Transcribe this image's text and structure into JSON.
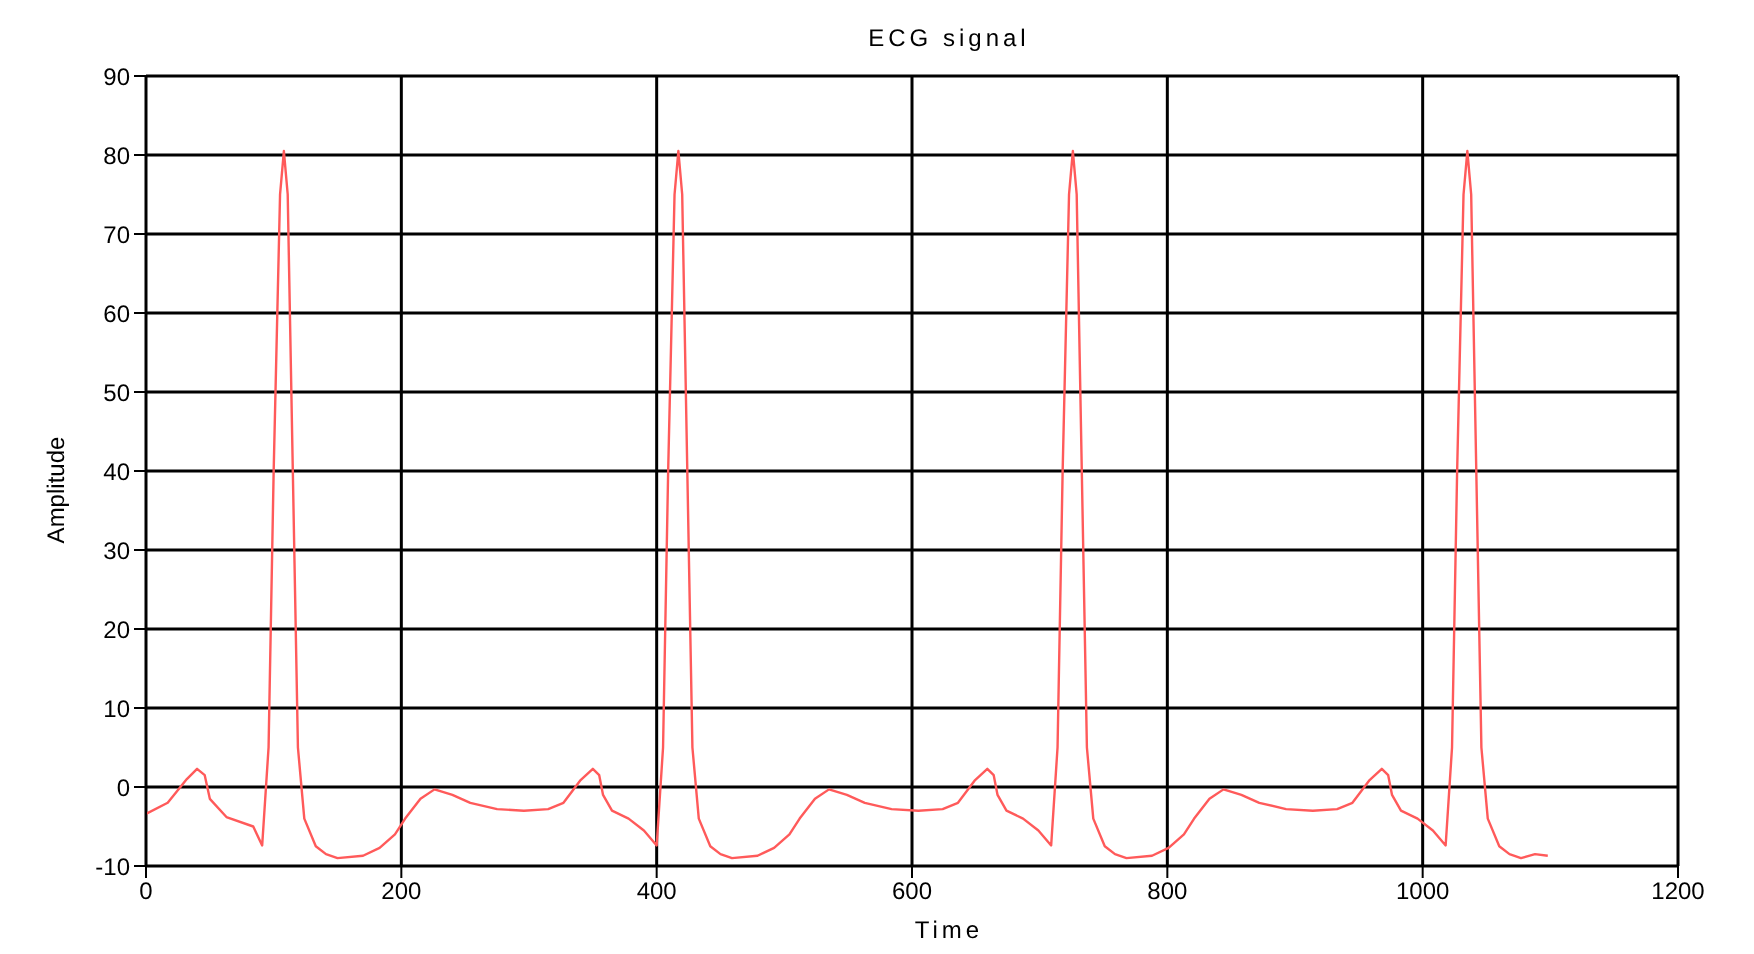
{
  "chart_data": {
    "type": "line",
    "title": "ECG signal",
    "xlabel": "Time",
    "ylabel": "Amplitude",
    "x": [
      0,
      17,
      32,
      40,
      46,
      50,
      63,
      84,
      91,
      96,
      100,
      105,
      108,
      111,
      115,
      119,
      124,
      133,
      141,
      150,
      170,
      183,
      195,
      203,
      215,
      226,
      240,
      254,
      275,
      296,
      315,
      327,
      340,
      350,
      355,
      358,
      365,
      378,
      390,
      400,
      405,
      409,
      414,
      417,
      420,
      424,
      428,
      433,
      442,
      450,
      459,
      479,
      492,
      504,
      512,
      524,
      535,
      549,
      563,
      584,
      605,
      624,
      636,
      649,
      659,
      664,
      667,
      674,
      687,
      699,
      709,
      714,
      718,
      723,
      726,
      729,
      733,
      737,
      742,
      751,
      759,
      768,
      788,
      801,
      813,
      821,
      833,
      844,
      858,
      872,
      893,
      914,
      933,
      945,
      958,
      968,
      973,
      976,
      983,
      996,
      1008,
      1018,
      1023,
      1027,
      1032,
      1035,
      1038,
      1042,
      1046,
      1051,
      1060,
      1068,
      1077,
      1088,
      1098
    ],
    "series": [
      {
        "color": "#ff5a5a",
        "values": [
          -3.4,
          -2,
          1,
          2.3,
          1.5,
          -1.5,
          -3.8,
          -5,
          -7.4,
          5,
          40,
          75,
          80.5,
          75,
          40,
          5,
          -4,
          -7.5,
          -8.5,
          -9,
          -8.7,
          -7.7,
          -6,
          -4,
          -1.5,
          -0.3,
          -1,
          -2,
          -2.8,
          -3,
          -2.8,
          -2,
          0.8,
          2.3,
          1.5,
          -1,
          -3,
          -4,
          -5.5,
          -7.4,
          5,
          40,
          75,
          80.5,
          75,
          40,
          5,
          -4,
          -7.5,
          -8.5,
          -9,
          -8.7,
          -7.7,
          -6,
          -4,
          -1.5,
          -0.3,
          -1,
          -2,
          -2.8,
          -3,
          -2.8,
          -2,
          0.8,
          2.3,
          1.5,
          -1,
          -3,
          -4,
          -5.5,
          -7.4,
          5,
          40,
          75,
          80.5,
          75,
          40,
          5,
          -4,
          -7.5,
          -8.5,
          -9,
          -8.7,
          -7.7,
          -6,
          -4,
          -1.5,
          -0.3,
          -1,
          -2,
          -2.8,
          -3,
          -2.8,
          -2,
          0.8,
          2.3,
          1.5,
          -1,
          -3,
          -4,
          -5.5,
          -7.4,
          5,
          40,
          75,
          80.5,
          75,
          40,
          5,
          -4,
          -7.5,
          -8.5,
          -9,
          -8.5,
          -8.7
        ]
      }
    ],
    "xlim": [
      0,
      1200
    ],
    "xticks": [
      0,
      200,
      400,
      600,
      800,
      1000,
      1200
    ],
    "ylim": [
      -10,
      90
    ],
    "yticks": [
      -10,
      0,
      10,
      20,
      30,
      40,
      50,
      60,
      70,
      80,
      90
    ],
    "grid": true,
    "legend": false,
    "marker": "none",
    "line_style": "solid"
  }
}
